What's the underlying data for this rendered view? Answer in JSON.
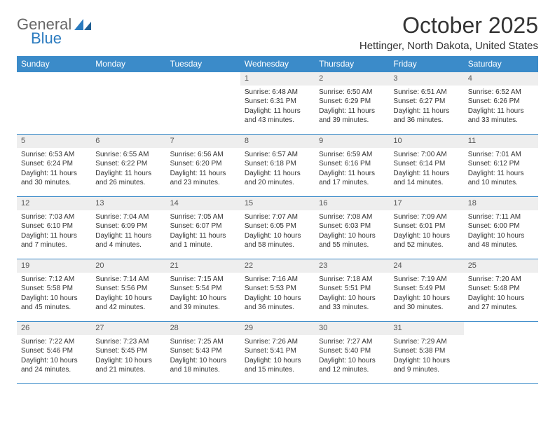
{
  "logo": {
    "text_general": "General",
    "text_blue": "Blue"
  },
  "title": "October 2025",
  "location": "Hettinger, North Dakota, United States",
  "colors": {
    "header_bg": "#3b8bc9",
    "header_text": "#ffffff",
    "daynum_bg": "#eeeeee",
    "border": "#3b8bc9",
    "body_text": "#333333",
    "logo_gray": "#666666",
    "logo_blue": "#2b7bbf",
    "background": "#ffffff"
  },
  "typography": {
    "title_fontsize": 32,
    "location_fontsize": 15,
    "header_fontsize": 12,
    "daynum_fontsize": 11,
    "cell_fontsize": 10
  },
  "day_names": [
    "Sunday",
    "Monday",
    "Tuesday",
    "Wednesday",
    "Thursday",
    "Friday",
    "Saturday"
  ],
  "weeks": [
    [
      null,
      null,
      null,
      {
        "n": "1",
        "sr": "Sunrise: 6:48 AM",
        "ss": "Sunset: 6:31 PM",
        "dl": "Daylight: 11 hours and 43 minutes."
      },
      {
        "n": "2",
        "sr": "Sunrise: 6:50 AM",
        "ss": "Sunset: 6:29 PM",
        "dl": "Daylight: 11 hours and 39 minutes."
      },
      {
        "n": "3",
        "sr": "Sunrise: 6:51 AM",
        "ss": "Sunset: 6:27 PM",
        "dl": "Daylight: 11 hours and 36 minutes."
      },
      {
        "n": "4",
        "sr": "Sunrise: 6:52 AM",
        "ss": "Sunset: 6:26 PM",
        "dl": "Daylight: 11 hours and 33 minutes."
      }
    ],
    [
      {
        "n": "5",
        "sr": "Sunrise: 6:53 AM",
        "ss": "Sunset: 6:24 PM",
        "dl": "Daylight: 11 hours and 30 minutes."
      },
      {
        "n": "6",
        "sr": "Sunrise: 6:55 AM",
        "ss": "Sunset: 6:22 PM",
        "dl": "Daylight: 11 hours and 26 minutes."
      },
      {
        "n": "7",
        "sr": "Sunrise: 6:56 AM",
        "ss": "Sunset: 6:20 PM",
        "dl": "Daylight: 11 hours and 23 minutes."
      },
      {
        "n": "8",
        "sr": "Sunrise: 6:57 AM",
        "ss": "Sunset: 6:18 PM",
        "dl": "Daylight: 11 hours and 20 minutes."
      },
      {
        "n": "9",
        "sr": "Sunrise: 6:59 AM",
        "ss": "Sunset: 6:16 PM",
        "dl": "Daylight: 11 hours and 17 minutes."
      },
      {
        "n": "10",
        "sr": "Sunrise: 7:00 AM",
        "ss": "Sunset: 6:14 PM",
        "dl": "Daylight: 11 hours and 14 minutes."
      },
      {
        "n": "11",
        "sr": "Sunrise: 7:01 AM",
        "ss": "Sunset: 6:12 PM",
        "dl": "Daylight: 11 hours and 10 minutes."
      }
    ],
    [
      {
        "n": "12",
        "sr": "Sunrise: 7:03 AM",
        "ss": "Sunset: 6:10 PM",
        "dl": "Daylight: 11 hours and 7 minutes."
      },
      {
        "n": "13",
        "sr": "Sunrise: 7:04 AM",
        "ss": "Sunset: 6:09 PM",
        "dl": "Daylight: 11 hours and 4 minutes."
      },
      {
        "n": "14",
        "sr": "Sunrise: 7:05 AM",
        "ss": "Sunset: 6:07 PM",
        "dl": "Daylight: 11 hours and 1 minute."
      },
      {
        "n": "15",
        "sr": "Sunrise: 7:07 AM",
        "ss": "Sunset: 6:05 PM",
        "dl": "Daylight: 10 hours and 58 minutes."
      },
      {
        "n": "16",
        "sr": "Sunrise: 7:08 AM",
        "ss": "Sunset: 6:03 PM",
        "dl": "Daylight: 10 hours and 55 minutes."
      },
      {
        "n": "17",
        "sr": "Sunrise: 7:09 AM",
        "ss": "Sunset: 6:01 PM",
        "dl": "Daylight: 10 hours and 52 minutes."
      },
      {
        "n": "18",
        "sr": "Sunrise: 7:11 AM",
        "ss": "Sunset: 6:00 PM",
        "dl": "Daylight: 10 hours and 48 minutes."
      }
    ],
    [
      {
        "n": "19",
        "sr": "Sunrise: 7:12 AM",
        "ss": "Sunset: 5:58 PM",
        "dl": "Daylight: 10 hours and 45 minutes."
      },
      {
        "n": "20",
        "sr": "Sunrise: 7:14 AM",
        "ss": "Sunset: 5:56 PM",
        "dl": "Daylight: 10 hours and 42 minutes."
      },
      {
        "n": "21",
        "sr": "Sunrise: 7:15 AM",
        "ss": "Sunset: 5:54 PM",
        "dl": "Daylight: 10 hours and 39 minutes."
      },
      {
        "n": "22",
        "sr": "Sunrise: 7:16 AM",
        "ss": "Sunset: 5:53 PM",
        "dl": "Daylight: 10 hours and 36 minutes."
      },
      {
        "n": "23",
        "sr": "Sunrise: 7:18 AM",
        "ss": "Sunset: 5:51 PM",
        "dl": "Daylight: 10 hours and 33 minutes."
      },
      {
        "n": "24",
        "sr": "Sunrise: 7:19 AM",
        "ss": "Sunset: 5:49 PM",
        "dl": "Daylight: 10 hours and 30 minutes."
      },
      {
        "n": "25",
        "sr": "Sunrise: 7:20 AM",
        "ss": "Sunset: 5:48 PM",
        "dl": "Daylight: 10 hours and 27 minutes."
      }
    ],
    [
      {
        "n": "26",
        "sr": "Sunrise: 7:22 AM",
        "ss": "Sunset: 5:46 PM",
        "dl": "Daylight: 10 hours and 24 minutes."
      },
      {
        "n": "27",
        "sr": "Sunrise: 7:23 AM",
        "ss": "Sunset: 5:45 PM",
        "dl": "Daylight: 10 hours and 21 minutes."
      },
      {
        "n": "28",
        "sr": "Sunrise: 7:25 AM",
        "ss": "Sunset: 5:43 PM",
        "dl": "Daylight: 10 hours and 18 minutes."
      },
      {
        "n": "29",
        "sr": "Sunrise: 7:26 AM",
        "ss": "Sunset: 5:41 PM",
        "dl": "Daylight: 10 hours and 15 minutes."
      },
      {
        "n": "30",
        "sr": "Sunrise: 7:27 AM",
        "ss": "Sunset: 5:40 PM",
        "dl": "Daylight: 10 hours and 12 minutes."
      },
      {
        "n": "31",
        "sr": "Sunrise: 7:29 AM",
        "ss": "Sunset: 5:38 PM",
        "dl": "Daylight: 10 hours and 9 minutes."
      },
      null
    ]
  ]
}
